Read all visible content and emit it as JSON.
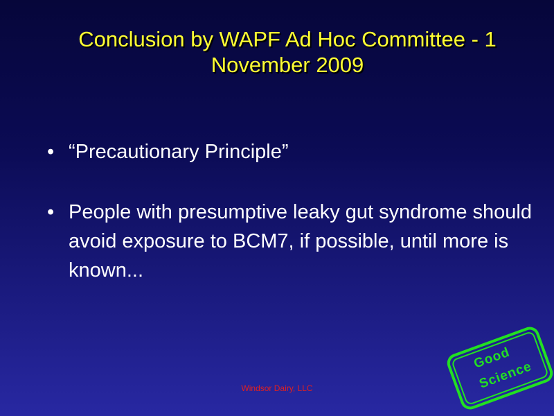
{
  "slide": {
    "title": "Conclusion by WAPF Ad Hoc Committee - 1 November 2009",
    "bullets": [
      "“Precautionary  Principle”",
      "People with presumptive leaky gut syndrome should avoid exposure to BCM7, if possible, until more is known..."
    ],
    "footer": "Windsor Dairy, LLC",
    "stamp": {
      "line1": "Good",
      "line2": "Science"
    }
  },
  "colors": {
    "title": "#ffff33",
    "body_text": "#ffffff",
    "footer": "#e02020",
    "stamp": "#22e022",
    "background_top": "#06063a",
    "background_bottom": "#2828a2"
  }
}
